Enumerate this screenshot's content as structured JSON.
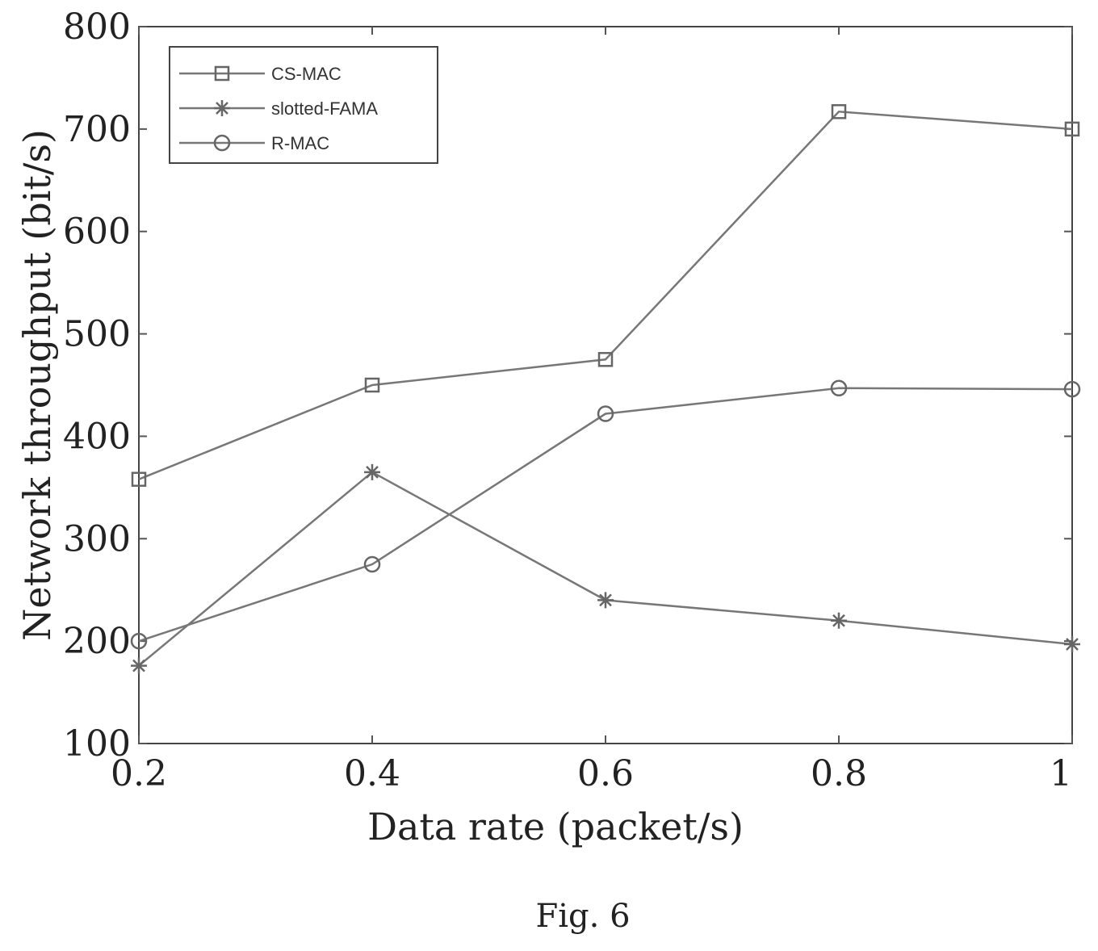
{
  "chart_data": {
    "type": "line",
    "title": "",
    "xlabel": "Data rate (packet/s)",
    "ylabel": "Network throughput (bit/s)",
    "x": [
      0.2,
      0.4,
      0.6,
      0.8,
      1
    ],
    "xlim": [
      0.2,
      1
    ],
    "ylim": [
      100,
      800
    ],
    "xticks": [
      "0.2",
      "0.4",
      "0.6",
      "0.8",
      "1"
    ],
    "yticks": [
      "100",
      "200",
      "300",
      "400",
      "500",
      "600",
      "700",
      "800"
    ],
    "grid": false,
    "legend_position": "top-left",
    "series": [
      {
        "name": "CS-MAC",
        "marker": "square",
        "values": [
          358,
          450,
          475,
          717,
          700
        ]
      },
      {
        "name": "slotted-FAMA",
        "marker": "star",
        "values": [
          176,
          365,
          240,
          220,
          197
        ]
      },
      {
        "name": "R-MAC",
        "marker": "circle",
        "values": [
          200,
          275,
          422,
          447,
          446
        ]
      }
    ]
  },
  "caption": "Fig. 6"
}
